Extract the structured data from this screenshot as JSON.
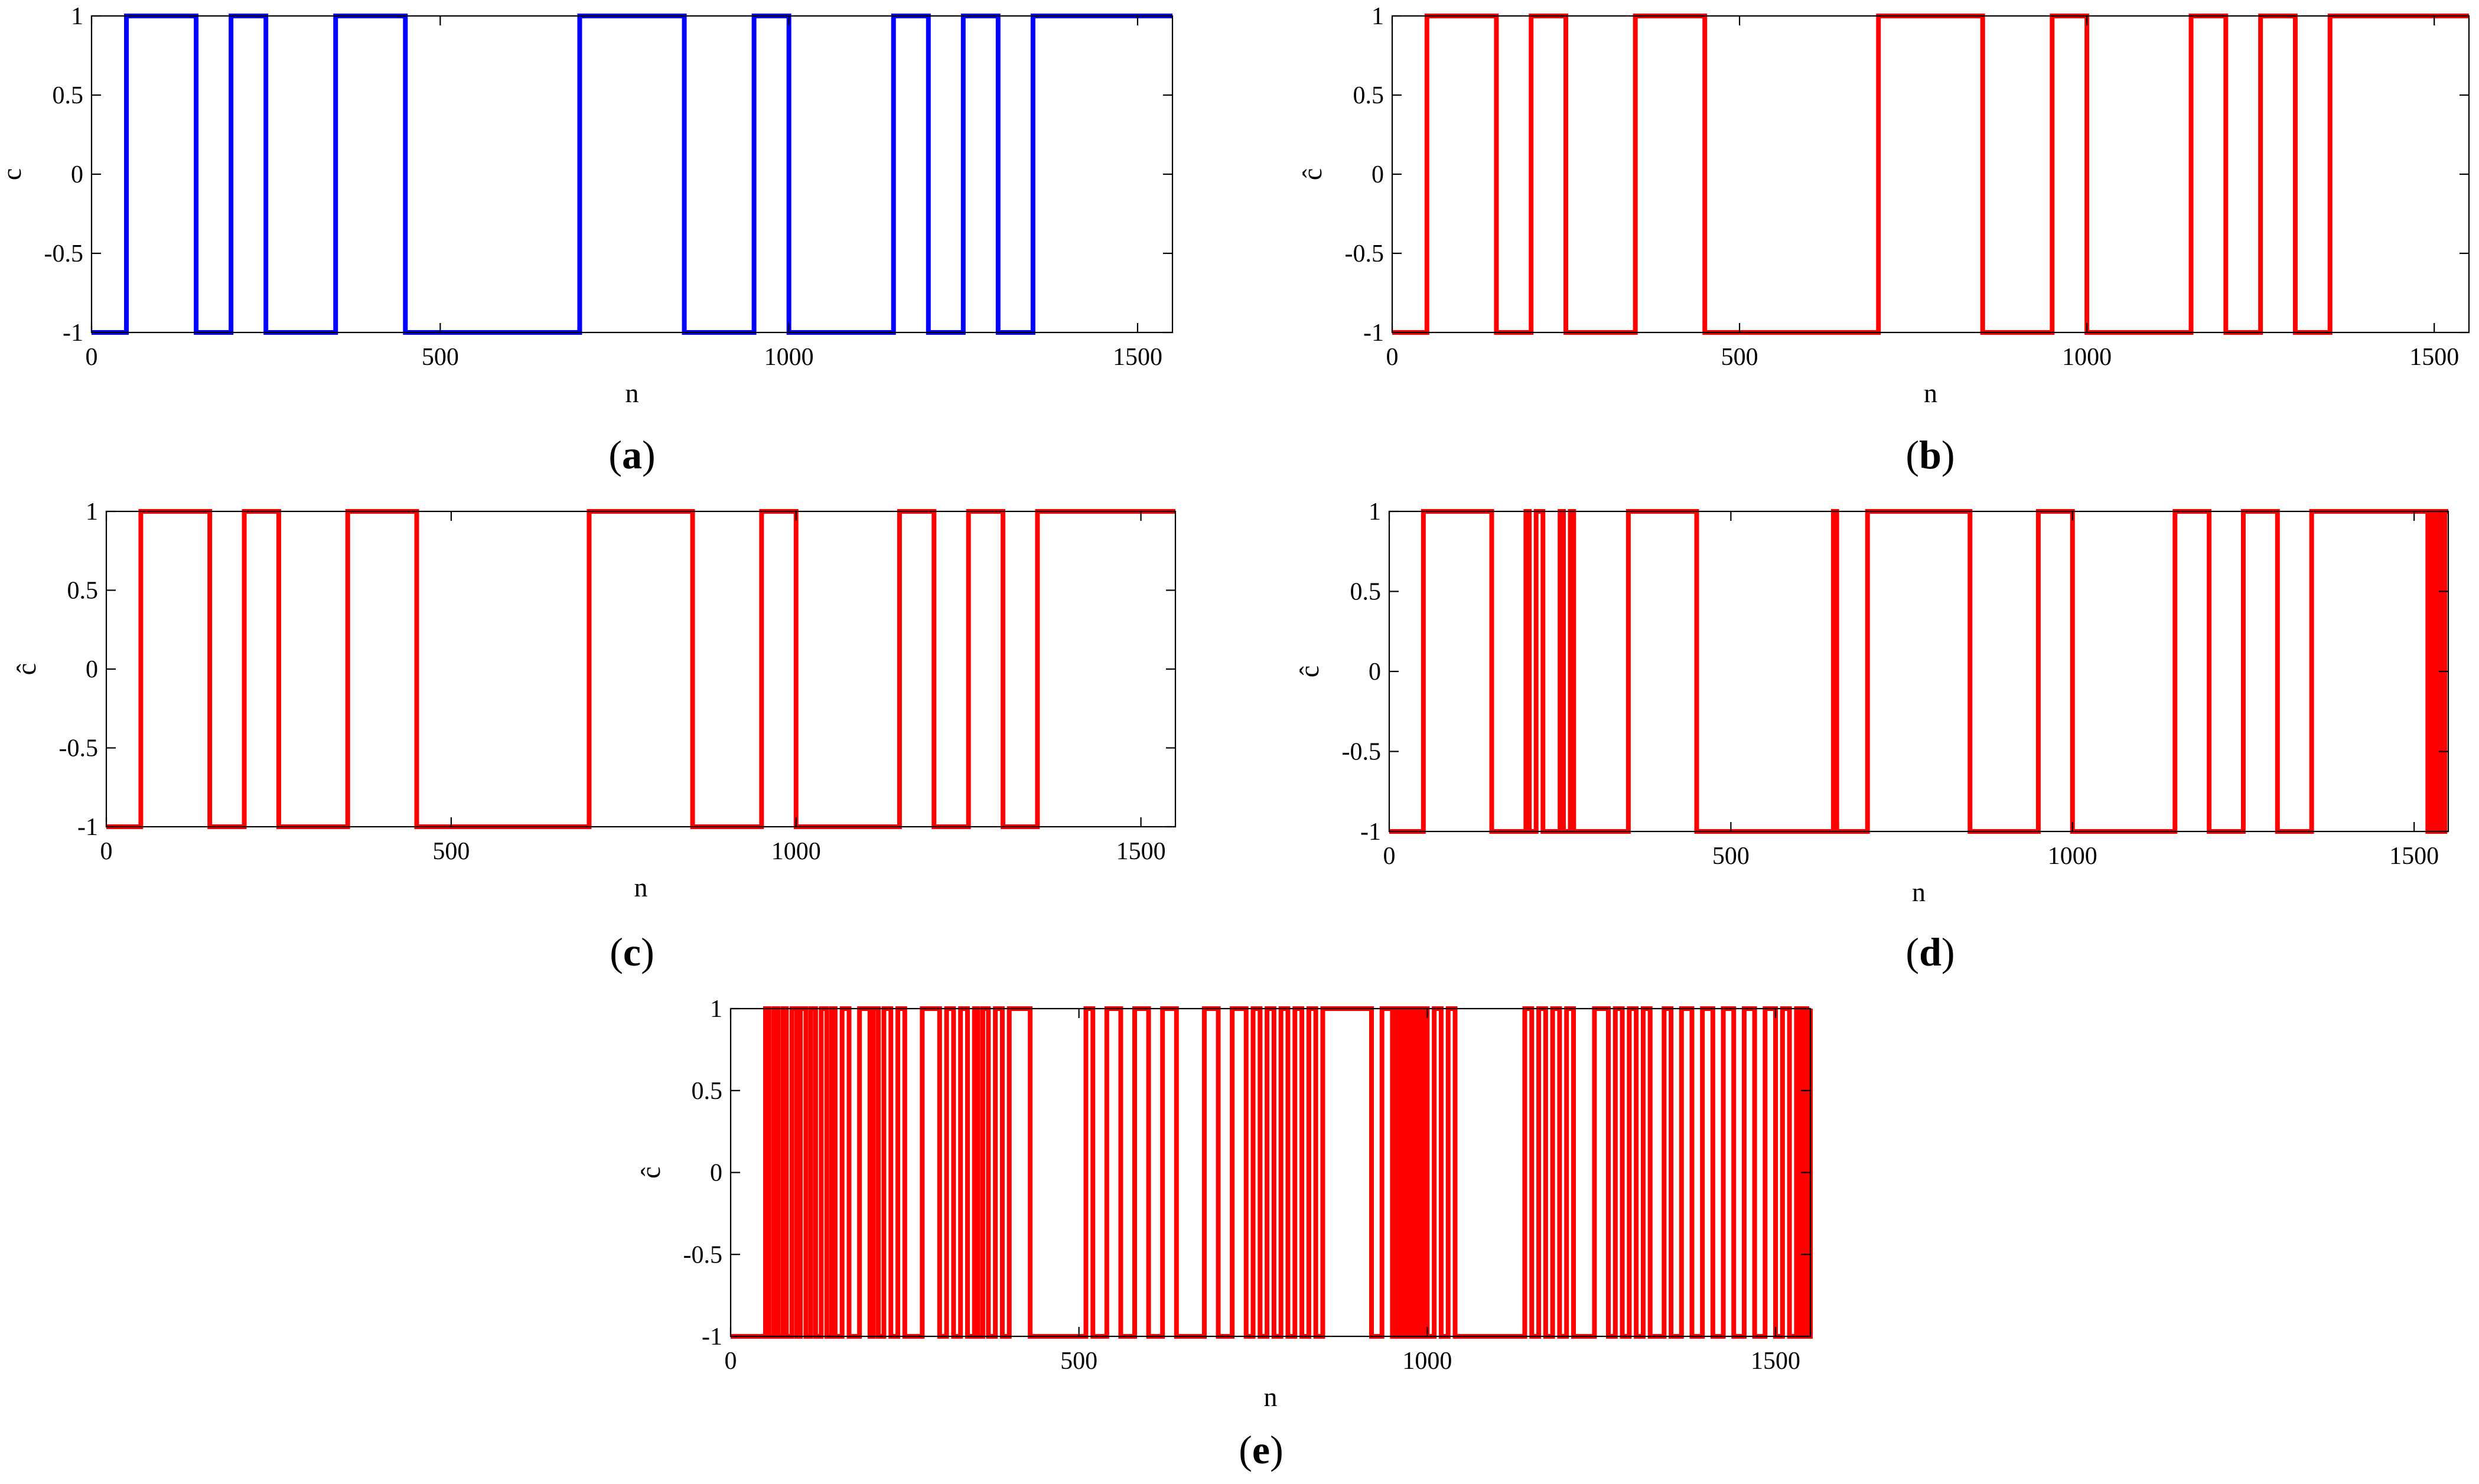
{
  "figure": {
    "panels": [
      {
        "id": "a",
        "caption_letter": "a",
        "xlabel": "n",
        "ylabel": "c"
      },
      {
        "id": "b",
        "caption_letter": "b",
        "xlabel": "n",
        "ylabel": "ĉ"
      },
      {
        "id": "c",
        "caption_letter": "c",
        "xlabel": "n",
        "ylabel": "ĉ"
      },
      {
        "id": "d",
        "caption_letter": "d",
        "xlabel": "n",
        "ylabel": "ĉ"
      },
      {
        "id": "e",
        "caption_letter": "e",
        "xlabel": "n",
        "ylabel": "ĉ"
      }
    ]
  },
  "chart_data": [
    {
      "panel": "a",
      "type": "line",
      "step": true,
      "color": "#0000ff",
      "xlabel": "n",
      "ylabel": "c",
      "xlim": [
        0,
        1550
      ],
      "ylim": [
        -1,
        1
      ],
      "xticks": [
        0,
        500,
        1000,
        1500
      ],
      "yticks": [
        -1,
        -0.5,
        0,
        0.5,
        1
      ],
      "ytick_labels": [
        "-1",
        "-0.5",
        "0",
        "0.5",
        "1"
      ],
      "grid": false,
      "x": [
        0,
        50,
        150,
        200,
        250,
        350,
        450,
        700,
        850,
        950,
        1000,
        1150,
        1200,
        1250,
        1300,
        1350,
        1550
      ],
      "y": [
        -1,
        1,
        -1,
        1,
        -1,
        1,
        -1,
        1,
        -1,
        1,
        -1,
        1,
        -1,
        1,
        -1,
        1,
        1
      ]
    },
    {
      "panel": "b",
      "type": "line",
      "step": true,
      "color": "#ff0000",
      "xlabel": "n",
      "ylabel": "ĉ",
      "xlim": [
        0,
        1550
      ],
      "ylim": [
        -1,
        1
      ],
      "xticks": [
        0,
        500,
        1000,
        1500
      ],
      "yticks": [
        -1,
        -0.5,
        0,
        0.5,
        1
      ],
      "ytick_labels": [
        "-1",
        "-0.5",
        "0",
        "0.5",
        "1"
      ],
      "grid": false,
      "x": [
        0,
        50,
        150,
        200,
        250,
        350,
        450,
        700,
        850,
        950,
        1000,
        1150,
        1200,
        1250,
        1300,
        1350,
        1550
      ],
      "y": [
        -1,
        1,
        -1,
        1,
        -1,
        1,
        -1,
        1,
        -1,
        1,
        -1,
        1,
        -1,
        1,
        -1,
        1,
        1
      ]
    },
    {
      "panel": "c",
      "type": "line",
      "step": true,
      "color": "#ff0000",
      "xlabel": "n",
      "ylabel": "ĉ",
      "xlim": [
        0,
        1550
      ],
      "ylim": [
        -1,
        1
      ],
      "xticks": [
        0,
        500,
        1000,
        1500
      ],
      "yticks": [
        -1,
        -0.5,
        0,
        0.5,
        1
      ],
      "ytick_labels": [
        "-1",
        "-0.5",
        "0",
        "0.5",
        "1"
      ],
      "grid": false,
      "x": [
        0,
        50,
        150,
        200,
        250,
        350,
        450,
        700,
        850,
        950,
        1000,
        1150,
        1200,
        1250,
        1300,
        1350,
        1550
      ],
      "y": [
        -1,
        1,
        -1,
        1,
        -1,
        1,
        -1,
        1,
        -1,
        1,
        -1,
        1,
        -1,
        1,
        -1,
        1,
        1
      ]
    },
    {
      "panel": "d",
      "type": "line",
      "step": true,
      "color": "#ff0000",
      "xlabel": "n",
      "ylabel": "ĉ",
      "xlim": [
        0,
        1550
      ],
      "ylim": [
        -1,
        1
      ],
      "xticks": [
        0,
        500,
        1000,
        1500
      ],
      "yticks": [
        -1,
        -0.5,
        0,
        0.5,
        1
      ],
      "ytick_labels": [
        "-1",
        "-0.5",
        "0",
        "0.5",
        "1"
      ],
      "grid": false,
      "x": [
        0,
        50,
        150,
        200,
        205,
        215,
        225,
        250,
        255,
        265,
        270,
        350,
        355,
        450,
        650,
        655,
        700,
        850,
        950,
        1000,
        1150,
        1200,
        1250,
        1300,
        1350,
        1520,
        1525,
        1530,
        1535,
        1540,
        1545,
        1550
      ],
      "y": [
        -1,
        1,
        -1,
        1,
        -1,
        1,
        -1,
        1,
        -1,
        1,
        -1,
        1,
        1,
        -1,
        1,
        -1,
        1,
        -1,
        1,
        -1,
        1,
        -1,
        1,
        -1,
        1,
        -1,
        1,
        -1,
        1,
        -1,
        1,
        1
      ]
    },
    {
      "panel": "e",
      "type": "line",
      "step": true,
      "color": "#ff0000",
      "xlabel": "n",
      "ylabel": "ĉ",
      "xlim": [
        0,
        1550
      ],
      "ylim": [
        -1,
        1
      ],
      "xticks": [
        0,
        500,
        1000,
        1500
      ],
      "yticks": [
        -1,
        -0.5,
        0,
        0.5,
        1
      ],
      "ytick_labels": [
        "-1",
        "-0.5",
        "0",
        "0.5",
        "1"
      ],
      "grid": false,
      "x": [
        0,
        50,
        55,
        62,
        68,
        75,
        80,
        88,
        95,
        100,
        108,
        115,
        122,
        130,
        138,
        145,
        150,
        160,
        170,
        185,
        200,
        205,
        212,
        220,
        230,
        240,
        250,
        275,
        300,
        310,
        320,
        330,
        340,
        350,
        355,
        362,
        370,
        380,
        390,
        400,
        430,
        510,
        520,
        540,
        560,
        580,
        600,
        620,
        640,
        680,
        700,
        720,
        740,
        750,
        760,
        770,
        780,
        790,
        800,
        810,
        820,
        830,
        840,
        850,
        920,
        935,
        950,
        955,
        960,
        965,
        970,
        975,
        980,
        985,
        990,
        995,
        1000,
        1010,
        1020,
        1030,
        1040,
        1140,
        1150,
        1160,
        1170,
        1180,
        1190,
        1200,
        1210,
        1240,
        1260,
        1270,
        1280,
        1290,
        1300,
        1310,
        1320,
        1340,
        1350,
        1365,
        1380,
        1395,
        1410,
        1425,
        1440,
        1455,
        1470,
        1485,
        1500,
        1510,
        1520,
        1530,
        1535,
        1540,
        1545,
        1550
      ],
      "y": [
        -1,
        1,
        -1,
        1,
        -1,
        1,
        -1,
        1,
        -1,
        1,
        -1,
        1,
        -1,
        1,
        -1,
        1,
        -1,
        1,
        -1,
        1,
        -1,
        1,
        -1,
        1,
        -1,
        1,
        -1,
        1,
        -1,
        1,
        -1,
        1,
        -1,
        1,
        -1,
        1,
        -1,
        1,
        -1,
        1,
        -1,
        1,
        -1,
        1,
        -1,
        1,
        -1,
        1,
        -1,
        1,
        -1,
        1,
        -1,
        1,
        -1,
        1,
        -1,
        1,
        -1,
        1,
        -1,
        1,
        -1,
        1,
        -1,
        1,
        -1,
        1,
        -1,
        1,
        -1,
        1,
        -1,
        1,
        -1,
        1,
        -1,
        1,
        -1,
        1,
        -1,
        1,
        -1,
        1,
        -1,
        1,
        -1,
        1,
        -1,
        1,
        -1,
        1,
        -1,
        1,
        -1,
        1,
        -1,
        1,
        -1,
        1,
        -1,
        1,
        -1,
        1,
        -1,
        1,
        -1,
        1,
        -1,
        1,
        -1,
        1,
        -1,
        1,
        -1,
        1
      ]
    }
  ]
}
